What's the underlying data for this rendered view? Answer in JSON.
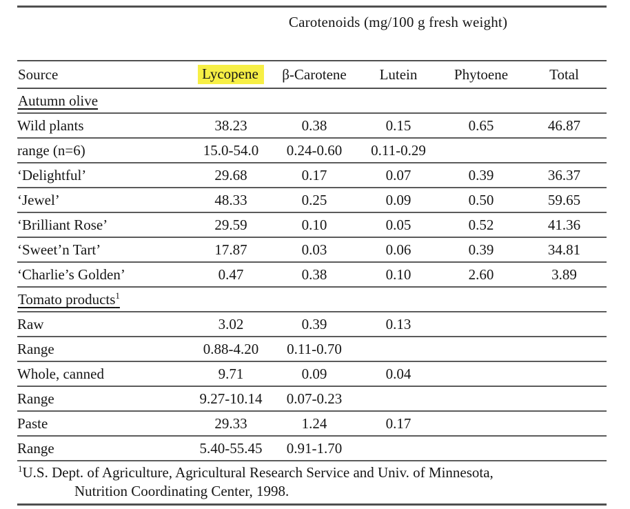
{
  "table": {
    "caption": "Carotenoids (mg/100 g fresh weight)",
    "highlight_color": "#f7ef45",
    "columns": [
      {
        "key": "source",
        "label": "Source",
        "highlight": false
      },
      {
        "key": "lycopene",
        "label": "Lycopene",
        "highlight": true
      },
      {
        "key": "beta-carotene",
        "label": "β-Carotene",
        "highlight": false
      },
      {
        "key": "lutein",
        "label": "Lutein",
        "highlight": false
      },
      {
        "key": "phytoene",
        "label": "Phytoene",
        "highlight": false
      },
      {
        "key": "total",
        "label": "Total",
        "highlight": false
      }
    ],
    "rows": [
      {
        "type": "section",
        "label": "Autumn olive",
        "sup": ""
      },
      {
        "type": "data",
        "indent": 1,
        "label": "Wild plants",
        "values": [
          "38.23",
          "0.38",
          "0.15",
          "0.65",
          "46.87"
        ]
      },
      {
        "type": "data",
        "indent": 2,
        "label": "range (n=6)",
        "values": [
          "15.0-54.0",
          "0.24-0.60",
          "0.11-0.29",
          "",
          ""
        ]
      },
      {
        "type": "data",
        "indent": 1,
        "label": "‘Delightful’",
        "values": [
          "29.68",
          "0.17",
          "0.07",
          "0.39",
          "36.37"
        ]
      },
      {
        "type": "data",
        "indent": 1,
        "label": "‘Jewel’",
        "values": [
          "48.33",
          "0.25",
          "0.09",
          "0.50",
          "59.65"
        ]
      },
      {
        "type": "data",
        "indent": 1,
        "label": "‘Brilliant Rose’",
        "values": [
          "29.59",
          "0.10",
          "0.05",
          "0.52",
          "41.36"
        ]
      },
      {
        "type": "data",
        "indent": 1,
        "label": "‘Sweet’n Tart’",
        "values": [
          "17.87",
          "0.03",
          "0.06",
          "0.39",
          "34.81"
        ]
      },
      {
        "type": "data",
        "indent": 1,
        "label": "‘Charlie’s Golden’",
        "values": [
          "0.47",
          "0.38",
          "0.10",
          "2.60",
          "3.89"
        ]
      },
      {
        "type": "section",
        "label": "Tomato products",
        "sup": "1"
      },
      {
        "type": "data",
        "indent": 1,
        "label": "Raw",
        "values": [
          "3.02",
          "0.39",
          "0.13",
          "",
          ""
        ]
      },
      {
        "type": "data",
        "indent": 2,
        "label": "Range",
        "values": [
          "0.88-4.20",
          "0.11-0.70",
          "",
          "",
          ""
        ]
      },
      {
        "type": "data",
        "indent": 1,
        "label": "Whole, canned",
        "values": [
          "9.71",
          "0.09",
          "0.04",
          "",
          ""
        ]
      },
      {
        "type": "data",
        "indent": 2,
        "label": "Range",
        "values": [
          "9.27-10.14",
          "0.07-0.23",
          "",
          "",
          ""
        ]
      },
      {
        "type": "data",
        "indent": 0,
        "label": "Paste",
        "values": [
          "29.33",
          "1.24",
          "0.17",
          "",
          ""
        ]
      },
      {
        "type": "data",
        "indent": 2,
        "label": "Range",
        "values": [
          "5.40-55.45",
          "0.91-1.70",
          "",
          "",
          ""
        ]
      }
    ],
    "footnote": {
      "marker": "1",
      "line1": "U.S. Dept. of Agriculture, Agricultural Research Service and Univ. of Minnesota,",
      "line2": "Nutrition Coordinating Center, 1998."
    }
  }
}
